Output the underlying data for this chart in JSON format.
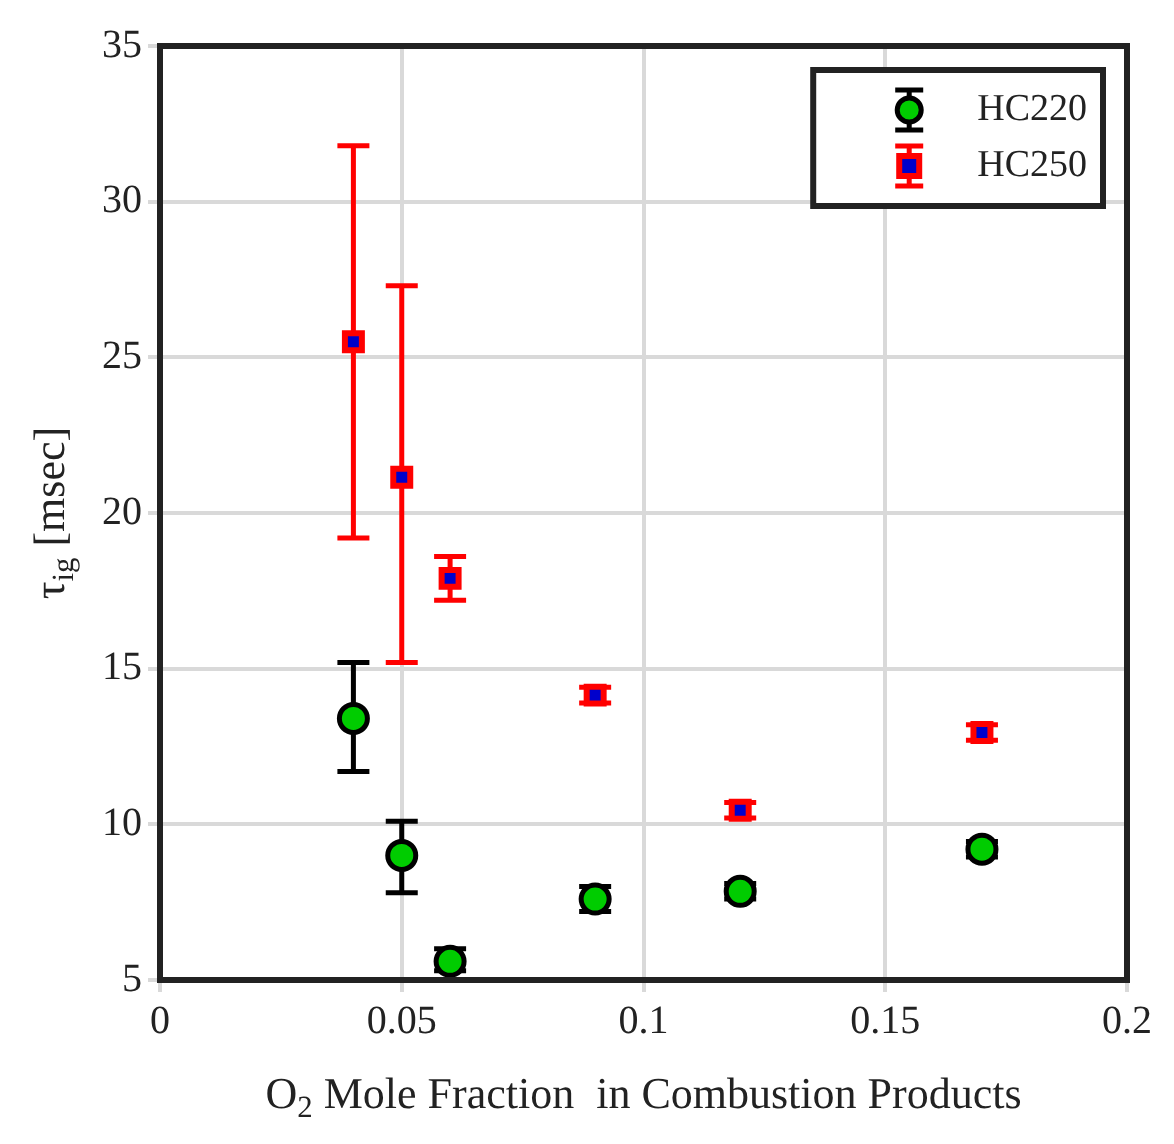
{
  "chart_data": {
    "type": "scatter",
    "xlabel": "O$_{2}$ Mole Fraction  in Combustion Products",
    "ylabel": "τ$_{ig}$ [msec]",
    "x": [
      0.04,
      0.05,
      0.06,
      0.09,
      0.12,
      0.17
    ],
    "series": [
      {
        "name": "HC220",
        "color": "#00cc00",
        "marker": "circle",
        "values": [
          13.4,
          9.0,
          5.6,
          7.6,
          7.85,
          9.2
        ],
        "errors": [
          [
            11.7,
            15.2
          ],
          [
            7.8,
            10.1
          ],
          [
            5.3,
            6.0
          ],
          [
            7.2,
            8.0
          ],
          [
            7.6,
            8.1
          ],
          [
            8.95,
            9.45
          ]
        ]
      },
      {
        "name": "HC250",
        "color": "#ff0000",
        "marker": "square",
        "values": [
          25.5,
          21.15,
          17.9,
          14.15,
          10.45,
          12.95
        ],
        "errors": [
          [
            19.2,
            31.8
          ],
          [
            15.2,
            27.3
          ],
          [
            17.2,
            18.6
          ],
          [
            13.9,
            14.4
          ],
          [
            10.2,
            10.7
          ],
          [
            12.7,
            13.2
          ]
        ]
      }
    ],
    "xlim": [
      0,
      0.2
    ],
    "xticks": [
      0,
      0.05,
      0.1,
      0.15,
      0.2
    ],
    "ylim": [
      5,
      35
    ],
    "yticks": [
      5,
      10,
      15,
      20,
      25,
      30,
      35
    ],
    "grid": true,
    "legend": "top right"
  }
}
